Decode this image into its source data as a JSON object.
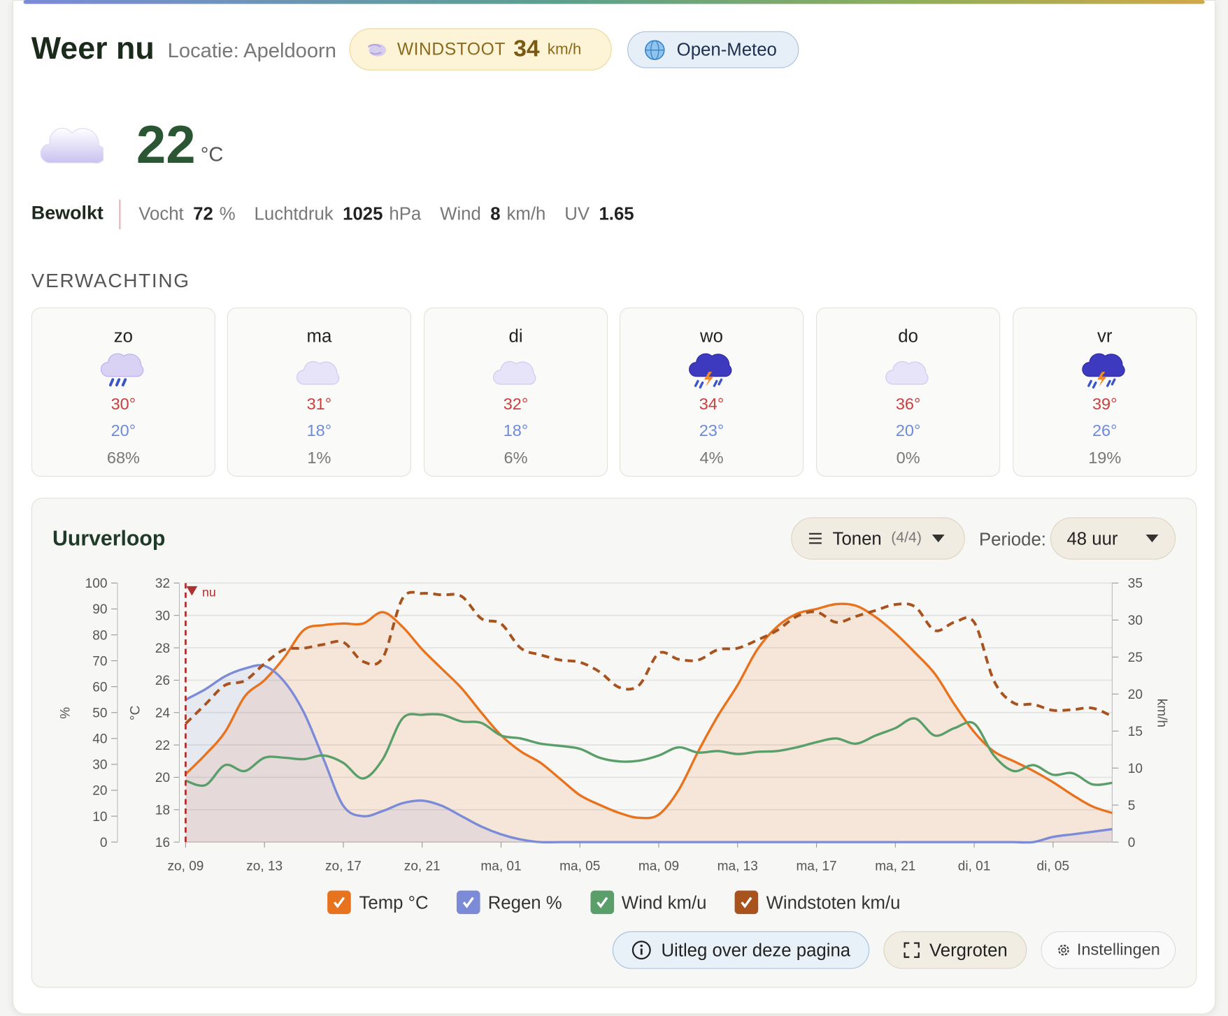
{
  "header": {
    "title": "Weer nu",
    "location": "Locatie: Apeldoorn",
    "gust_label": "WINDSTOOT",
    "gust_value": 34,
    "gust_unit": "km/h",
    "source": "Open-Meteo"
  },
  "current": {
    "temperature": 22,
    "unit": "°C",
    "condition": "Bewolkt",
    "stats": [
      {
        "label": "Vocht",
        "value": 72,
        "unit": "%"
      },
      {
        "label": "Luchtdruk",
        "value": 1025,
        "unit": "hPa"
      },
      {
        "label": "Wind",
        "value": 8,
        "unit": "km/h"
      },
      {
        "label": "UV",
        "value": 1.65
      }
    ]
  },
  "forecast": {
    "title": "VERWACHTING",
    "days": [
      {
        "day": "zo",
        "icon": "rain",
        "high": "30°",
        "low": "20°",
        "rain": "68%"
      },
      {
        "day": "ma",
        "icon": "cloud",
        "high": "31°",
        "low": "18°",
        "rain": "1%"
      },
      {
        "day": "di",
        "icon": "cloud",
        "high": "32°",
        "low": "18°",
        "rain": "6%"
      },
      {
        "day": "wo",
        "icon": "storm",
        "high": "34°",
        "low": "23°",
        "rain": "4%"
      },
      {
        "day": "do",
        "icon": "cloud",
        "high": "36°",
        "low": "20°",
        "rain": "0%"
      },
      {
        "day": "vr",
        "icon": "storm",
        "high": "39°",
        "low": "26°",
        "rain": "19%"
      }
    ]
  },
  "hourly": {
    "title": "Uurverloop",
    "show_label": "Tonen",
    "show_count": "(4/4)",
    "period_label": "Periode:",
    "period_value": "48 uur"
  },
  "buttons": [
    "Uitleg over deze pagina",
    "Vergroten",
    "Instellingen"
  ],
  "chart_data": {
    "type": "line",
    "annotation": "nu",
    "categories": [
      "zo, 09",
      null,
      null,
      null,
      "zo, 13",
      null,
      null,
      null,
      "zo, 17",
      null,
      null,
      null,
      "zo, 21",
      null,
      null,
      null,
      "ma, 01",
      null,
      null,
      null,
      "ma, 05",
      null,
      null,
      null,
      "ma, 09",
      null,
      null,
      null,
      "ma, 13",
      null,
      null,
      null,
      "ma, 17",
      null,
      null,
      null,
      "ma, 21",
      null,
      null,
      null,
      "di, 01",
      null,
      null,
      null,
      "di, 05",
      null,
      null,
      null
    ],
    "y_label": "°C",
    "ylim": [
      16,
      32
    ],
    "yticks": [
      16,
      18,
      20,
      22,
      24,
      26,
      28,
      30,
      32
    ],
    "y2_label": "km/h",
    "y2lim": [
      0,
      35
    ],
    "y2ticks": [
      0,
      5,
      10,
      15,
      20,
      25,
      30,
      35
    ],
    "y3_label": "%",
    "y3lim": [
      0,
      100
    ],
    "y3ticks": [
      0,
      10,
      20,
      30,
      40,
      50,
      60,
      70,
      80,
      90,
      100
    ],
    "grid": true,
    "series": [
      {
        "name": "Temp °C",
        "color": "#e8731e",
        "axis": "y",
        "fill": true,
        "values": [
          20.2,
          21.4,
          22.8,
          25,
          26,
          27.4,
          29.1,
          29.4,
          29.5,
          29.5,
          30.2,
          29.3,
          27.9,
          26.7,
          25.5,
          24,
          22.6,
          21.6,
          20.9,
          19.9,
          18.9,
          18.3,
          17.8,
          17.5,
          17.7,
          19.2,
          21.6,
          23.8,
          25.7,
          27.9,
          29.3,
          30.1,
          30.4,
          30.7,
          30.6,
          29.9,
          28.9,
          27.7,
          26.4,
          24.5,
          22.8,
          21.6,
          21,
          20.4,
          19.7,
          18.9,
          18.2,
          17.8
        ]
      },
      {
        "name": "Regen %",
        "color": "#7b8bd8",
        "axis": "y3",
        "fill": true,
        "values": [
          55,
          59,
          64,
          67,
          68,
          62,
          50,
          32,
          14,
          10,
          12,
          15,
          16,
          14,
          10,
          6,
          3,
          1,
          0,
          0,
          0,
          0,
          0,
          0,
          0,
          0,
          0,
          0,
          0,
          0,
          0,
          0,
          0,
          0,
          0,
          0,
          0,
          0,
          0,
          0,
          0,
          0,
          0,
          0,
          2,
          3,
          4,
          5
        ]
      },
      {
        "name": "Wind km/u",
        "color": "#5a9e6a",
        "axis": "y2",
        "values": [
          8.3,
          7.7,
          10.4,
          9.6,
          11.4,
          11.4,
          11.2,
          11.7,
          10.7,
          8.6,
          11.2,
          16.7,
          17.2,
          17.2,
          16.3,
          16.1,
          14.4,
          14,
          13.3,
          13,
          12.6,
          11.4,
          10.9,
          11,
          11.7,
          12.8,
          12.1,
          12.3,
          11.9,
          12.2,
          12.3,
          12.8,
          13.5,
          14,
          13.3,
          14.4,
          15.4,
          16.7,
          14.4,
          15.4,
          16,
          11.7,
          9.6,
          10.4,
          9.1,
          9.3,
          7.8,
          8
        ]
      },
      {
        "name": "Windstoten km/u",
        "color": "#a8521e",
        "axis": "y2",
        "dashed": true,
        "values": [
          16,
          18.6,
          21.2,
          21.8,
          24.1,
          26,
          26.2,
          26.7,
          27,
          24.4,
          24.9,
          32.9,
          33.6,
          33.4,
          33.2,
          30.2,
          29.5,
          26.2,
          25.3,
          24.6,
          24.3,
          23,
          20.9,
          21.2,
          25.5,
          24.7,
          24.6,
          26,
          26.2,
          27.3,
          28.6,
          30.5,
          31.1,
          29.7,
          30.5,
          31.3,
          32.1,
          31.8,
          28.6,
          29.7,
          29.7,
          21.8,
          18.8,
          18.6,
          17.8,
          17.9,
          18.1,
          17
        ]
      }
    ]
  }
}
